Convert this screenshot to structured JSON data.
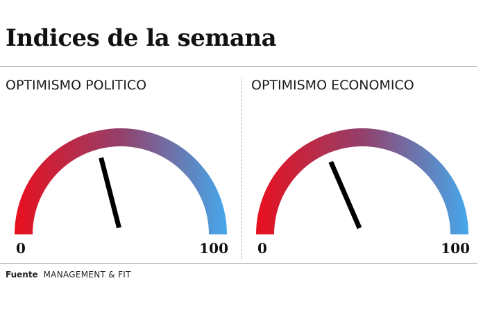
{
  "header": {
    "title": "Indices de la semana"
  },
  "footer": {
    "source_label": "Fuente",
    "source_name": "MANAGEMENT & FIT"
  },
  "colors": {
    "low": "#e8101e",
    "mid": "#93406b",
    "high": "#45a8ec",
    "needle": "#000000"
  },
  "chart_data": [
    {
      "type": "gauge",
      "title": "OPTIMISMO POLITICO",
      "value": 42,
      "min": 0,
      "max": 100,
      "min_label": "0",
      "max_label": "100"
    },
    {
      "type": "gauge",
      "title": "OPTIMISMO ECONOMICO",
      "value": 37,
      "min": 0,
      "max": 100,
      "min_label": "0",
      "max_label": "100"
    }
  ]
}
